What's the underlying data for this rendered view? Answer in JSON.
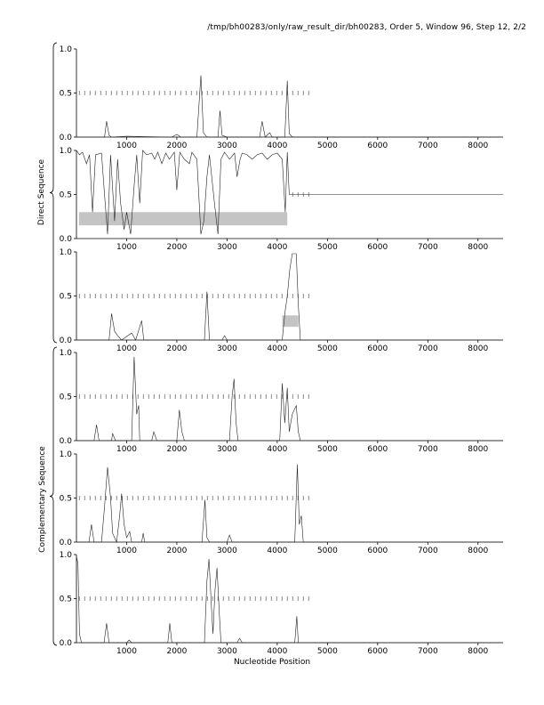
{
  "page": {
    "title": "/tmp/bh00283/only/raw_result_dir/bh00283, Order 5, Window 96, Step 12, 2/2",
    "xlabel": "Nucleotide Position",
    "group_labels": [
      "Direct Sequence",
      "Complementary Sequence"
    ]
  },
  "chart_data": [
    {
      "type": "line",
      "panel": 1,
      "group": "Direct Sequence",
      "xlim": [
        0,
        8500
      ],
      "ylim": [
        0,
        1.0
      ],
      "xticks": [
        1000,
        2000,
        3000,
        4000,
        5000,
        6000,
        7000,
        8000
      ],
      "yticks": [
        0.0,
        0.5,
        1.0
      ],
      "points": [
        [
          0,
          0
        ],
        [
          560,
          0
        ],
        [
          600,
          0.18
        ],
        [
          650,
          0.02
        ],
        [
          700,
          0
        ],
        [
          1000,
          0.01
        ],
        [
          1900,
          0
        ],
        [
          2000,
          0.03
        ],
        [
          2080,
          0
        ],
        [
          2400,
          0
        ],
        [
          2480,
          0.7
        ],
        [
          2530,
          0.05
        ],
        [
          2600,
          0
        ],
        [
          2820,
          0
        ],
        [
          2860,
          0.3
        ],
        [
          2900,
          0.02
        ],
        [
          3000,
          0
        ],
        [
          3650,
          0
        ],
        [
          3700,
          0.18
        ],
        [
          3760,
          0
        ],
        [
          3850,
          0.05
        ],
        [
          3900,
          0
        ],
        [
          4150,
          0
        ],
        [
          4200,
          0.64
        ],
        [
          4240,
          0.04
        ],
        [
          4300,
          0
        ],
        [
          8500,
          0
        ]
      ],
      "ticks_at_half": [
        [
          50,
          4700
        ]
      ],
      "shaded": []
    },
    {
      "type": "line",
      "panel": 2,
      "group": "Direct Sequence",
      "xlim": [
        0,
        8500
      ],
      "ylim": [
        0,
        1.0
      ],
      "xticks": [
        1000,
        2000,
        3000,
        4000,
        5000,
        6000,
        7000,
        8000
      ],
      "yticks": [
        0.0,
        0.5,
        1.0
      ],
      "points": [
        [
          0,
          1.0
        ],
        [
          60,
          0.95
        ],
        [
          120,
          0.98
        ],
        [
          200,
          0.85
        ],
        [
          260,
          0.95
        ],
        [
          320,
          0.3
        ],
        [
          380,
          0.95
        ],
        [
          500,
          0.97
        ],
        [
          560,
          0.5
        ],
        [
          620,
          0.05
        ],
        [
          680,
          0.95
        ],
        [
          760,
          0.2
        ],
        [
          820,
          0.9
        ],
        [
          880,
          0.4
        ],
        [
          950,
          0.1
        ],
        [
          1000,
          0.3
        ],
        [
          1080,
          0.05
        ],
        [
          1150,
          0.6
        ],
        [
          1200,
          0.95
        ],
        [
          1260,
          0.4
        ],
        [
          1320,
          1.0
        ],
        [
          1400,
          0.95
        ],
        [
          1500,
          0.97
        ],
        [
          1560,
          0.9
        ],
        [
          1620,
          0.98
        ],
        [
          1700,
          0.85
        ],
        [
          1780,
          0.97
        ],
        [
          1850,
          0.9
        ],
        [
          1950,
          0.98
        ],
        [
          2000,
          0.55
        ],
        [
          2060,
          0.98
        ],
        [
          2150,
          0.9
        ],
        [
          2250,
          0.85
        ],
        [
          2300,
          0.98
        ],
        [
          2400,
          0.9
        ],
        [
          2480,
          0.05
        ],
        [
          2540,
          0.2
        ],
        [
          2600,
          0.7
        ],
        [
          2650,
          0.95
        ],
        [
          2750,
          0.4
        ],
        [
          2820,
          0.05
        ],
        [
          2880,
          0.9
        ],
        [
          2950,
          0.98
        ],
        [
          3050,
          0.9
        ],
        [
          3150,
          0.97
        ],
        [
          3200,
          0.7
        ],
        [
          3260,
          0.9
        ],
        [
          3300,
          0.97
        ],
        [
          3400,
          0.95
        ],
        [
          3500,
          0.9
        ],
        [
          3600,
          0.95
        ],
        [
          3700,
          0.97
        ],
        [
          3800,
          0.9
        ],
        [
          3900,
          0.95
        ],
        [
          4000,
          0.97
        ],
        [
          4100,
          0.9
        ],
        [
          4160,
          0.3
        ],
        [
          4200,
          0.98
        ],
        [
          4240,
          0.5
        ],
        [
          4300,
          0.5
        ],
        [
          8500,
          0.5
        ]
      ],
      "ticks_at_half": [
        [
          4300,
          4700
        ]
      ],
      "shaded": [
        [
          50,
          4200,
          0.15,
          0.3
        ]
      ]
    },
    {
      "type": "line",
      "panel": 3,
      "group": "Direct Sequence",
      "xlim": [
        0,
        8500
      ],
      "ylim": [
        0,
        1.0
      ],
      "xticks": [
        1000,
        2000,
        3000,
        4000,
        5000,
        6000,
        7000,
        8000
      ],
      "yticks": [
        0.0,
        0.5,
        1.0
      ],
      "points": [
        [
          0,
          0
        ],
        [
          650,
          0
        ],
        [
          700,
          0.3
        ],
        [
          760,
          0.1
        ],
        [
          820,
          0.05
        ],
        [
          900,
          0
        ],
        [
          1100,
          0.08
        ],
        [
          1180,
          0
        ],
        [
          1300,
          0.22
        ],
        [
          1340,
          0
        ],
        [
          2550,
          0
        ],
        [
          2600,
          0.55
        ],
        [
          2650,
          0
        ],
        [
          2900,
          0
        ],
        [
          2950,
          0.05
        ],
        [
          3000,
          0
        ],
        [
          4100,
          0
        ],
        [
          4150,
          0.3
        ],
        [
          4200,
          0.5
        ],
        [
          4250,
          0.8
        ],
        [
          4300,
          0.98
        ],
        [
          4380,
          0.98
        ],
        [
          4420,
          0.4
        ],
        [
          4460,
          0
        ],
        [
          8500,
          0
        ]
      ],
      "ticks_at_half": [
        [
          50,
          4700
        ]
      ],
      "shaded": [
        [
          4100,
          4420,
          0.15,
          0.28
        ]
      ]
    },
    {
      "type": "line",
      "panel": 4,
      "group": "Complementary Sequence",
      "xlim": [
        0,
        8500
      ],
      "ylim": [
        0,
        1.0
      ],
      "xticks": [
        1000,
        2000,
        3000,
        4000,
        5000,
        6000,
        7000,
        8000
      ],
      "yticks": [
        0.0,
        0.5,
        1.0
      ],
      "points": [
        [
          0,
          0
        ],
        [
          350,
          0
        ],
        [
          400,
          0.18
        ],
        [
          450,
          0
        ],
        [
          700,
          0
        ],
        [
          720,
          0.08
        ],
        [
          780,
          0
        ],
        [
          1100,
          0
        ],
        [
          1150,
          0.95
        ],
        [
          1200,
          0.3
        ],
        [
          1240,
          0.4
        ],
        [
          1260,
          0
        ],
        [
          1500,
          0
        ],
        [
          1540,
          0.1
        ],
        [
          1600,
          0
        ],
        [
          2000,
          0
        ],
        [
          2050,
          0.35
        ],
        [
          2100,
          0.1
        ],
        [
          2150,
          0
        ],
        [
          3050,
          0
        ],
        [
          3100,
          0.5
        ],
        [
          3140,
          0.7
        ],
        [
          3180,
          0.2
        ],
        [
          3220,
          0
        ],
        [
          4050,
          0
        ],
        [
          4100,
          0.65
        ],
        [
          4150,
          0.2
        ],
        [
          4200,
          0.6
        ],
        [
          4240,
          0.1
        ],
        [
          4300,
          0.3
        ],
        [
          4380,
          0.4
        ],
        [
          4420,
          0.1
        ],
        [
          4460,
          0
        ],
        [
          8500,
          0
        ]
      ],
      "ticks_at_half": [
        [
          50,
          4700
        ]
      ],
      "shaded": []
    },
    {
      "type": "line",
      "panel": 5,
      "group": "Complementary Sequence",
      "xlim": [
        0,
        8500
      ],
      "ylim": [
        0,
        1.0
      ],
      "xticks": [
        1000,
        2000,
        3000,
        4000,
        5000,
        6000,
        7000,
        8000
      ],
      "yticks": [
        0.0,
        0.5,
        1.0
      ],
      "points": [
        [
          0,
          0
        ],
        [
          250,
          0
        ],
        [
          300,
          0.2
        ],
        [
          350,
          0
        ],
        [
          500,
          0
        ],
        [
          560,
          0.4
        ],
        [
          620,
          0.85
        ],
        [
          680,
          0.5
        ],
        [
          720,
          0.1
        ],
        [
          800,
          0
        ],
        [
          860,
          0.3
        ],
        [
          900,
          0.55
        ],
        [
          950,
          0.2
        ],
        [
          1000,
          0.05
        ],
        [
          1060,
          0.12
        ],
        [
          1100,
          0
        ],
        [
          1300,
          0
        ],
        [
          1330,
          0.1
        ],
        [
          1360,
          0
        ],
        [
          2500,
          0
        ],
        [
          2560,
          0.48
        ],
        [
          2600,
          0.05
        ],
        [
          2650,
          0
        ],
        [
          3000,
          0
        ],
        [
          3050,
          0.08
        ],
        [
          3100,
          0
        ],
        [
          4350,
          0
        ],
        [
          4400,
          0.88
        ],
        [
          4440,
          0.2
        ],
        [
          4480,
          0.3
        ],
        [
          4520,
          0
        ],
        [
          8500,
          0
        ]
      ],
      "ticks_at_half": [
        [
          50,
          4700
        ]
      ],
      "shaded": []
    },
    {
      "type": "line",
      "panel": 6,
      "group": "Complementary Sequence",
      "xlim": [
        0,
        8500
      ],
      "ylim": [
        0,
        1.0
      ],
      "xticks": [
        1000,
        2000,
        3000,
        4000,
        5000,
        6000,
        7000,
        8000
      ],
      "yticks": [
        0.0,
        0.5,
        1.0
      ],
      "points": [
        [
          0,
          0.98
        ],
        [
          30,
          0.9
        ],
        [
          60,
          0.1
        ],
        [
          100,
          0
        ],
        [
          550,
          0
        ],
        [
          600,
          0.22
        ],
        [
          650,
          0
        ],
        [
          1000,
          0
        ],
        [
          1050,
          0.03
        ],
        [
          1100,
          0
        ],
        [
          1820,
          0
        ],
        [
          1860,
          0.22
        ],
        [
          1900,
          0
        ],
        [
          2550,
          0
        ],
        [
          2600,
          0.7
        ],
        [
          2640,
          0.95
        ],
        [
          2690,
          0.4
        ],
        [
          2720,
          0.1
        ],
        [
          2760,
          0.6
        ],
        [
          2800,
          0.85
        ],
        [
          2850,
          0.3
        ],
        [
          2880,
          0
        ],
        [
          3200,
          0
        ],
        [
          3250,
          0.05
        ],
        [
          3300,
          0
        ],
        [
          4350,
          0
        ],
        [
          4390,
          0.3
        ],
        [
          4420,
          0
        ],
        [
          8500,
          0
        ]
      ],
      "ticks_at_half": [
        [
          50,
          4700
        ]
      ],
      "shaded": []
    }
  ]
}
